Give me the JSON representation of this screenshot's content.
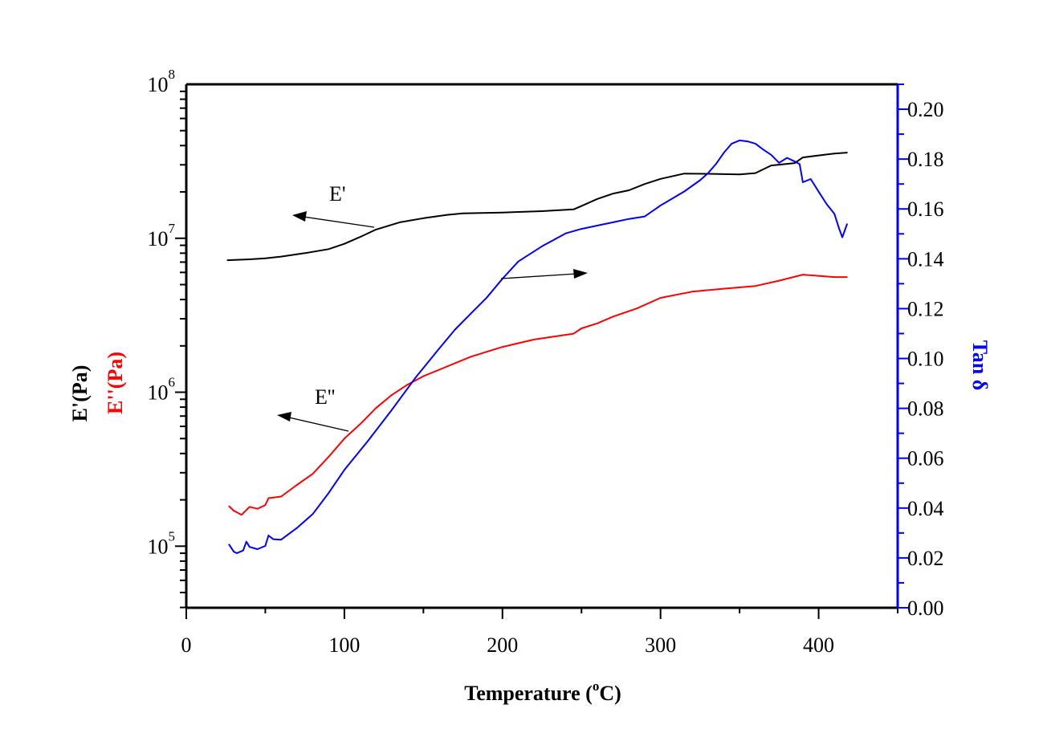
{
  "chart_data": {
    "type": "line",
    "title": "",
    "xlabel": "Temperature (°C)",
    "xlabel_parts": {
      "main": "Temperature (",
      "sup": "o",
      "end": "C)"
    },
    "ylabel_left": [
      "E'(Pa)",
      "E''(Pa)"
    ],
    "ylabel_right": "Tan δ",
    "xlim": [
      0,
      450
    ],
    "ylim_left_log10": [
      4.6,
      8
    ],
    "ylim_right": [
      0,
      0.21
    ],
    "y_left_scale": "log",
    "grid": false,
    "x_ticks": [
      "0",
      "100",
      "200",
      "300",
      "400"
    ],
    "x_tick_values": [
      0,
      100,
      200,
      300,
      400
    ],
    "y_left_ticks": [
      {
        "base": "10",
        "exp": "5",
        "value": 100000
      },
      {
        "base": "10",
        "exp": "6",
        "value": 1000000
      },
      {
        "base": "10",
        "exp": "7",
        "value": 10000000
      },
      {
        "base": "10",
        "exp": "8",
        "value": 100000000
      }
    ],
    "y_right_ticks": [
      "0.00",
      "0.02",
      "0.04",
      "0.06",
      "0.08",
      "0.10",
      "0.12",
      "0.14",
      "0.16",
      "0.18",
      "0.20"
    ],
    "y_right_tick_values": [
      0,
      0.02,
      0.04,
      0.06,
      0.08,
      0.1,
      0.12,
      0.14,
      0.16,
      0.18,
      0.2
    ],
    "annotations": [
      {
        "text": "E'",
        "points_to": "left-axis",
        "series": "E'"
      },
      {
        "text": "E''",
        "points_to": "left-axis",
        "series": "E''"
      },
      {
        "text": "",
        "points_to": "right-axis",
        "series": "Tan δ"
      }
    ],
    "series": [
      {
        "name": "E'",
        "axis": "left",
        "color": "#000000",
        "x": [
          26,
          40,
          50,
          60,
          75,
          90,
          100,
          110,
          120,
          135,
          150,
          165,
          175,
          200,
          225,
          245,
          250,
          260,
          270,
          280,
          290,
          300,
          315,
          330,
          350,
          360,
          370,
          385,
          390,
          400,
          410,
          418
        ],
        "y": [
          7200000.0,
          7300000.0,
          7400000.0,
          7600000.0,
          8000000.0,
          8500000.0,
          9200000.0,
          10200000.0,
          11400000.0,
          12700000.0,
          13500000.0,
          14200000.0,
          14500000.0,
          14700000.0,
          15000000.0,
          15400000.0,
          16200000.0,
          18000000.0,
          19500000.0,
          20500000.0,
          22500000.0,
          24300000.0,
          26300000.0,
          26200000.0,
          26000000.0,
          26500000.0,
          29700000.0,
          30800000.0,
          33500000.0,
          34500000.0,
          35500000.0,
          36000000.0
        ]
      },
      {
        "name": "E''",
        "axis": "left",
        "color": "#ff0000",
        "x": [
          27,
          30,
          35,
          40,
          45,
          50,
          52,
          60,
          70,
          80,
          90,
          100,
          110,
          120,
          130,
          140,
          150,
          160,
          180,
          200,
          220,
          245,
          250,
          260,
          270,
          285,
          300,
          320,
          340,
          360,
          375,
          390,
          400,
          410,
          418
        ],
        "y": [
          182000.0,
          170000.0,
          160000.0,
          180000.0,
          175000.0,
          185000.0,
          205000.0,
          210000.0,
          250000.0,
          295000.0,
          380000.0,
          500000.0,
          620000.0,
          790000.0,
          960000.0,
          1120000.0,
          1270000.0,
          1400000.0,
          1700000.0,
          1970000.0,
          2200000.0,
          2400000.0,
          2600000.0,
          2800000.0,
          3100000.0,
          3500000.0,
          4100000.0,
          4500000.0,
          4700000.0,
          4900000.0,
          5300000.0,
          5800000.0,
          5700000.0,
          5600000.0,
          5600000.0
        ]
      },
      {
        "name": "Tan δ",
        "axis": "right",
        "color": "#0000ff",
        "x": [
          27,
          30,
          32,
          36,
          38,
          40,
          45,
          50,
          52,
          55,
          60,
          70,
          80,
          90,
          100,
          115,
          130,
          145,
          160,
          170,
          180,
          190,
          200,
          210,
          225,
          240,
          250,
          265,
          280,
          290,
          300,
          315,
          325,
          330,
          335,
          340,
          345,
          350,
          355,
          360,
          365,
          370,
          375,
          380,
          385,
          388,
          390,
          395,
          400,
          405,
          410,
          413,
          415,
          418
        ],
        "y": [
          0.0254,
          0.0225,
          0.0219,
          0.023,
          0.0265,
          0.0244,
          0.0235,
          0.0248,
          0.029,
          0.0275,
          0.0273,
          0.032,
          0.0376,
          0.046,
          0.0553,
          0.067,
          0.0794,
          0.0923,
          0.104,
          0.1116,
          0.118,
          0.1244,
          0.132,
          0.1389,
          0.145,
          0.1502,
          0.152,
          0.154,
          0.156,
          0.157,
          0.1614,
          0.167,
          0.1715,
          0.1743,
          0.178,
          0.1825,
          0.1862,
          0.1875,
          0.1871,
          0.1862,
          0.1838,
          0.1817,
          0.1785,
          0.1805,
          0.179,
          0.178,
          0.1707,
          0.172,
          0.1669,
          0.162,
          0.158,
          0.152,
          0.1486,
          0.154
        ]
      }
    ]
  }
}
